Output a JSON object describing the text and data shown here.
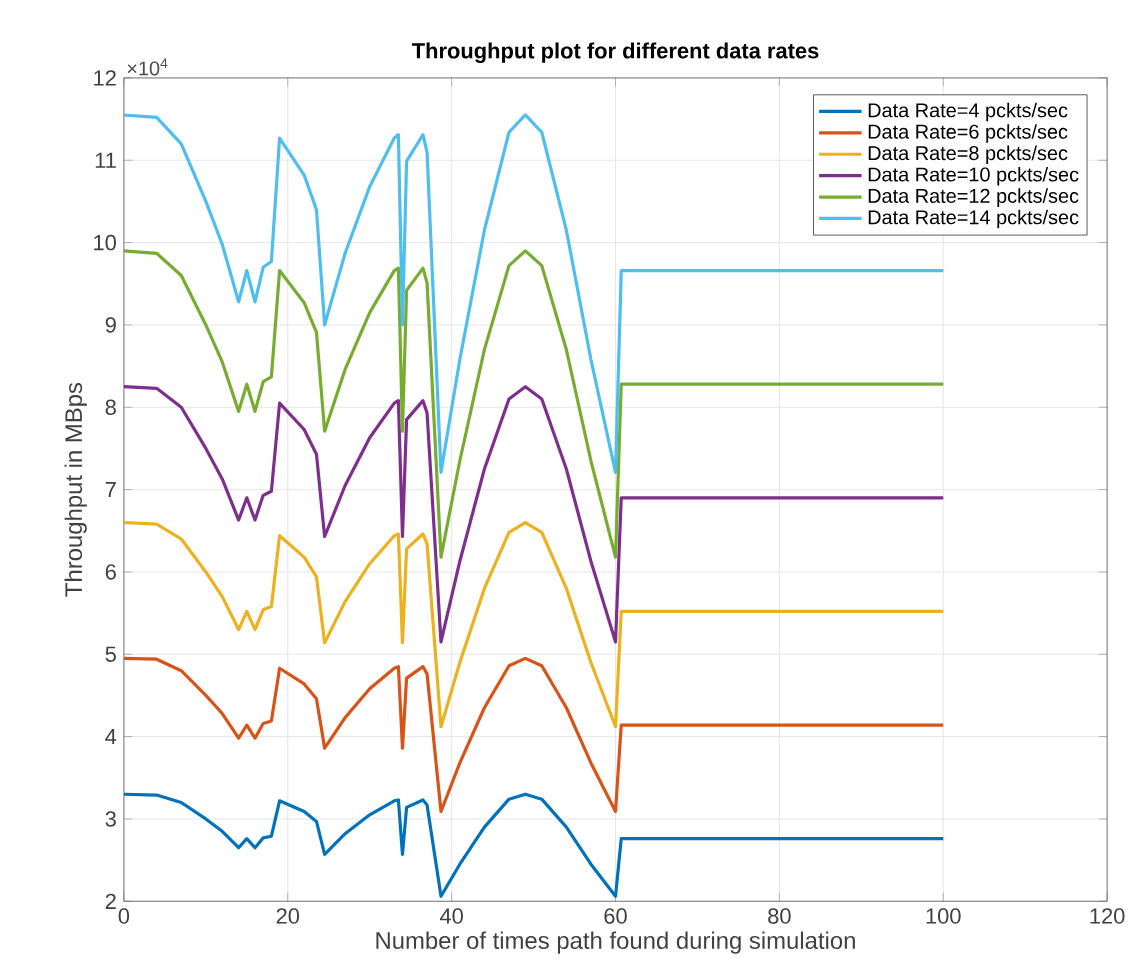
{
  "chart_data": {
    "type": "line",
    "title": "Throughput plot for different data rates",
    "xlabel": "Number of times path found during simulation",
    "ylabel": "Throughput in MBps",
    "annotations": [
      "×10$^{4}$"
    ],
    "x": [
      0,
      4,
      7,
      10,
      12,
      14,
      15,
      16,
      17,
      18,
      19,
      22,
      23.5,
      24.5,
      27,
      30,
      33,
      33.5,
      34,
      34.5,
      36.5,
      37,
      38.7,
      41,
      44,
      47,
      49,
      51,
      54,
      57,
      60,
      60.7,
      100
    ],
    "series": [
      {
        "name": "Data Rate=4 pckts/sec",
        "color": "#0072bd",
        "values": [
          3.3,
          3.29,
          3.2,
          3.0,
          2.85,
          2.65,
          2.76,
          2.65,
          2.77,
          2.79,
          3.22,
          3.09,
          2.97,
          2.57,
          2.82,
          3.05,
          3.22,
          3.23,
          2.57,
          3.14,
          3.23,
          3.17,
          2.06,
          2.45,
          2.9,
          3.24,
          3.3,
          3.24,
          2.9,
          2.45,
          2.06,
          2.76,
          2.76
        ]
      },
      {
        "name": "Data Rate=6 pckts/sec",
        "color": "#d95319",
        "values": [
          4.95,
          4.94,
          4.8,
          4.5,
          4.28,
          3.98,
          4.14,
          3.98,
          4.16,
          4.19,
          4.83,
          4.64,
          4.46,
          3.86,
          4.23,
          4.58,
          4.83,
          4.85,
          3.86,
          4.71,
          4.85,
          4.76,
          3.09,
          3.68,
          4.35,
          4.86,
          4.95,
          4.86,
          4.35,
          3.68,
          3.09,
          4.14,
          4.14
        ]
      },
      {
        "name": "Data Rate=8 pckts/sec",
        "color": "#edb120",
        "values": [
          6.6,
          6.58,
          6.4,
          6.0,
          5.7,
          5.3,
          5.52,
          5.3,
          5.54,
          5.58,
          6.44,
          6.18,
          5.94,
          5.14,
          5.64,
          6.1,
          6.44,
          6.46,
          5.14,
          6.28,
          6.46,
          6.34,
          4.12,
          4.9,
          5.8,
          6.48,
          6.6,
          6.48,
          5.8,
          4.9,
          4.12,
          5.52,
          5.52
        ]
      },
      {
        "name": "Data Rate=10 pckts/sec",
        "color": "#7e2f8e",
        "values": [
          8.25,
          8.23,
          8.0,
          7.5,
          7.13,
          6.63,
          6.9,
          6.63,
          6.93,
          6.98,
          8.05,
          7.73,
          7.43,
          6.43,
          7.05,
          7.63,
          8.05,
          8.08,
          6.43,
          7.85,
          8.08,
          7.93,
          5.15,
          6.13,
          7.25,
          8.1,
          8.25,
          8.1,
          7.25,
          6.13,
          5.15,
          6.9,
          6.9
        ]
      },
      {
        "name": "Data Rate=12 pckts/sec",
        "color": "#77ac30",
        "values": [
          9.9,
          9.87,
          9.6,
          9.0,
          8.55,
          7.95,
          8.28,
          7.95,
          8.31,
          8.37,
          9.66,
          9.27,
          8.91,
          7.71,
          8.46,
          9.15,
          9.66,
          9.69,
          7.71,
          9.42,
          9.69,
          9.51,
          6.18,
          7.35,
          8.7,
          9.72,
          9.9,
          9.72,
          8.7,
          7.35,
          6.18,
          8.28,
          8.28
        ]
      },
      {
        "name": "Data Rate=14 pckts/sec",
        "color": "#4dbeee",
        "values": [
          11.55,
          11.52,
          11.2,
          10.5,
          9.98,
          9.28,
          9.66,
          9.28,
          9.7,
          9.77,
          11.27,
          10.82,
          10.4,
          9.0,
          9.87,
          10.68,
          11.27,
          11.31,
          9.0,
          10.99,
          11.31,
          11.1,
          7.21,
          8.58,
          10.15,
          11.34,
          11.55,
          11.34,
          10.15,
          8.58,
          7.21,
          9.66,
          9.66
        ]
      }
    ],
    "xlim": [
      0,
      120
    ],
    "xticks": [
      0,
      20,
      40,
      60,
      80,
      100,
      120
    ],
    "ylim": [
      2,
      12
    ],
    "yticks": [
      2,
      3,
      4,
      5,
      6,
      7,
      8,
      9,
      10,
      11,
      12
    ],
    "grid": true,
    "legend": "top right"
  }
}
